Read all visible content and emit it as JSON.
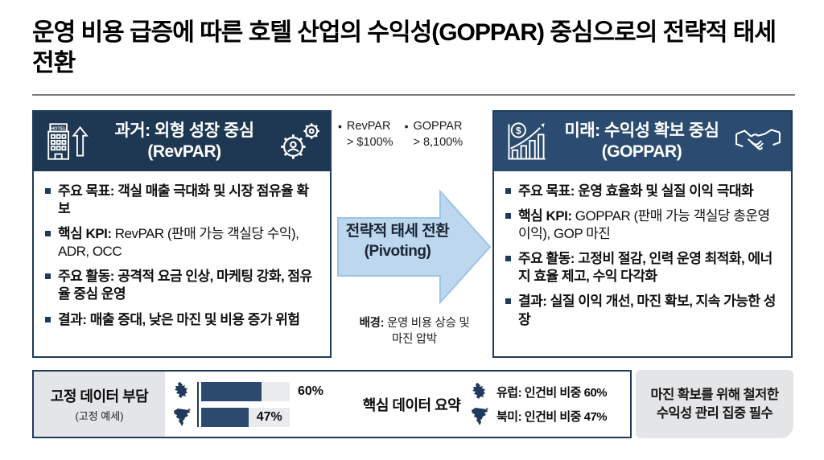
{
  "slide": {
    "title": "운영 비용 급증에 따른 호텔 산업의 수익성(GOPPAR) 중심으로의 전략적 태세 전환"
  },
  "colors": {
    "past_header_bg": "#1e3854",
    "future_header_bg": "#2b4c70",
    "box_border": "#1f3a5c",
    "arrow_fill": "#bdd7ee",
    "arrow_border": "#9dc3e6",
    "bar_fill": "#2b4a6e",
    "panel_bg": "#e3e5e8"
  },
  "past_box": {
    "icon_left": "hotel-building-icon",
    "hotel_sign": "HOTEL",
    "icon_right": "gears-icon",
    "title": "과거: 외형 성장 중심",
    "subtitle": "(RevPAR)",
    "bullets": [
      {
        "label": "주요 목표:",
        "text": "객실 매출 극대화 및 시장 점유율 확보"
      },
      {
        "label": "핵심 KPI:",
        "text": "RevPAR (판매 가능 객실당 수익), ADR, OCC"
      },
      {
        "label": "주요 활동:",
        "text": "공격적 요금 인상, 마케팅 강화, 점유율 중심 운영"
      },
      {
        "label": "결과:",
        "text": "매출 증대, 낮은 마진 및 비용 증가 위험"
      }
    ]
  },
  "future_box": {
    "icon_left": "growth-chart-icon",
    "coin_symbol": "$",
    "icon_right": "handshake-icon",
    "title": "미래: 수익성 확보 중심",
    "subtitle": "(GOPPAR)",
    "bullets": [
      {
        "label": "주요 목표:",
        "text": "운영 효율화 및 실질 이익 극대화"
      },
      {
        "label": "핵심 KPI:",
        "text": "GOPPAR (판매 가능 객실당 총운영이익), GOP 마진"
      },
      {
        "label": "주요 활동:",
        "text": "고정비 절감, 인력 운영 최적화, 에너지 효율 제고, 수익 다각화"
      },
      {
        "label": "결과:",
        "text": "실질 이익 개선, 마진 확보, 지속 가능한 성장"
      }
    ]
  },
  "middle": {
    "metrics": [
      {
        "name": "RevPAR",
        "value": "> $100%"
      },
      {
        "name": "GOPPAR",
        "value": "> 8,100%"
      }
    ],
    "arrow_title": "전략적 태세 전환",
    "arrow_subtitle": "(Pivoting)",
    "note_label": "배경:",
    "note_line1": "운영 비용 상승 및",
    "note_line2": "마진 압박"
  },
  "bottom": {
    "panel_title": "고정 데이터 부담",
    "panel_subtitle": "(고정 예세)",
    "chart_data": {
      "type": "bar",
      "orientation": "horizontal",
      "categories": [
        "유럽",
        "북미"
      ],
      "values": [
        60,
        47
      ],
      "labels": [
        "60%",
        "47%"
      ],
      "max": 88
    },
    "summary_label": "핵심 데이터 요약",
    "legend": [
      {
        "icon": "europe-map-icon",
        "text": "유럽: 인건비 비중 60%"
      },
      {
        "icon": "north-america-map-icon",
        "text": "북미: 인건비 비중 47%"
      }
    ],
    "conclusion": "마진 확보를 위해 철저한 수익성 관리 집중 필수"
  }
}
